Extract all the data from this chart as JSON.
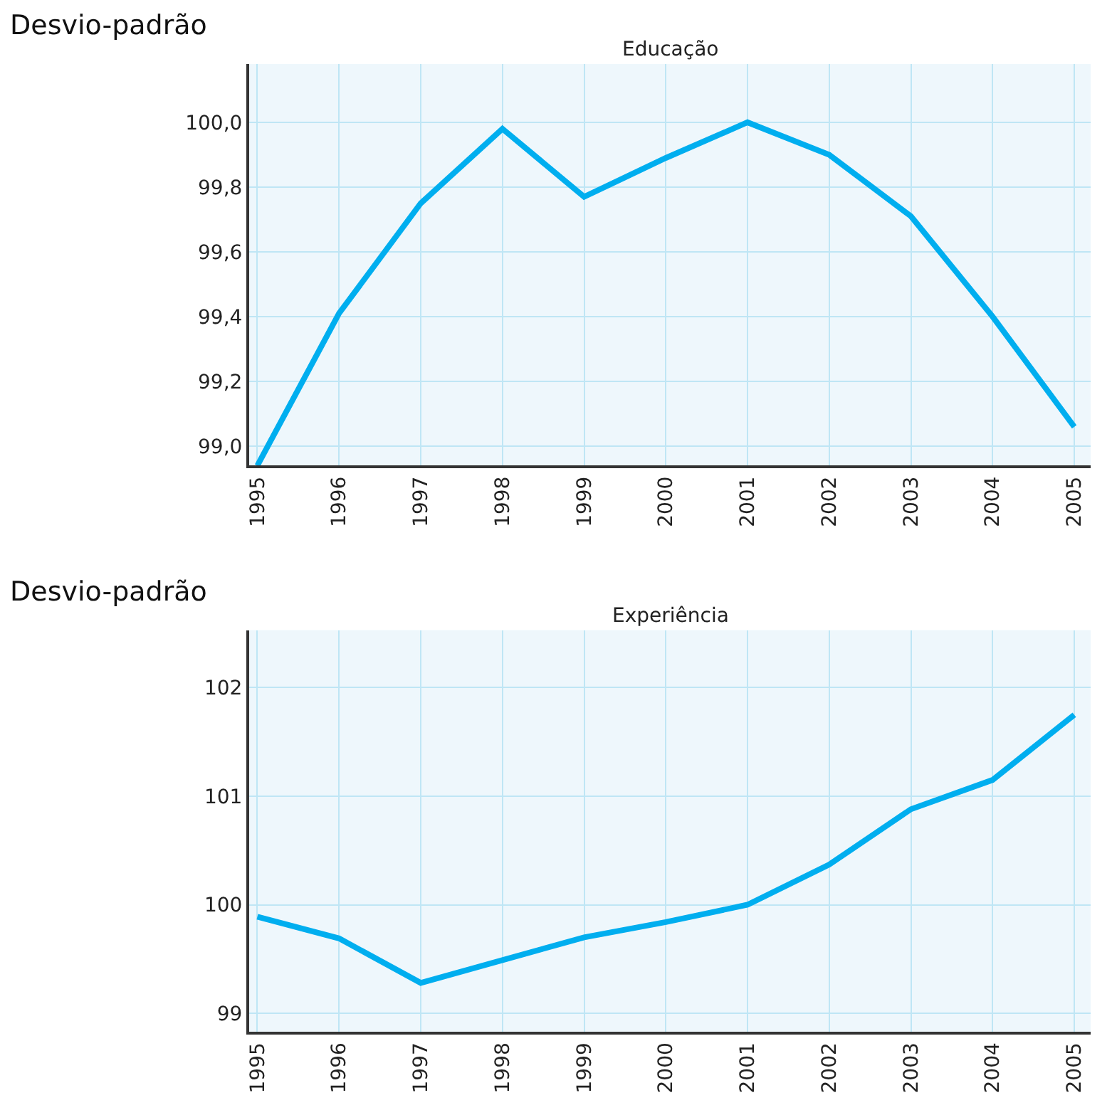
{
  "chart_data": [
    {
      "type": "line",
      "title": "Educação",
      "ylabel": "Desvio-padrão",
      "x": [
        1995,
        1996,
        1997,
        1998,
        1999,
        2000,
        2001,
        2002,
        2003,
        2004,
        2005
      ],
      "series": [
        {
          "color": "#00aeef",
          "values": [
            98.94,
            99.41,
            99.75,
            99.98,
            99.77,
            99.89,
            100.0,
            99.9,
            99.71,
            99.4,
            99.06
          ]
        }
      ],
      "xlim": [
        1994.9,
        2005.2
      ],
      "xticks": [
        1995,
        1996,
        1997,
        1998,
        1999,
        2000,
        2001,
        2002,
        2003,
        2004,
        2005
      ],
      "ylim": [
        98.94,
        100.18
      ],
      "yticks": [
        {
          "value": 99.0,
          "label": "99,0"
        },
        {
          "value": 99.2,
          "label": "99,2"
        },
        {
          "value": 99.4,
          "label": "99,4"
        },
        {
          "value": 99.6,
          "label": "99,6"
        },
        {
          "value": 99.8,
          "label": "99,8"
        },
        {
          "value": 100.0,
          "label": "100,0"
        }
      ],
      "grid": true,
      "marker": "none",
      "line_style": "solid"
    },
    {
      "type": "line",
      "title": "Experiência",
      "ylabel": "Desvio-padrão",
      "x": [
        1995,
        1996,
        1997,
        1998,
        1999,
        2000,
        2001,
        2002,
        2003,
        2004,
        2005
      ],
      "series": [
        {
          "color": "#00aeef",
          "values": [
            99.89,
            99.69,
            99.28,
            99.49,
            99.7,
            99.84,
            100.0,
            100.37,
            100.88,
            101.15,
            101.75
          ]
        }
      ],
      "xlim": [
        1994.9,
        2005.2
      ],
      "xticks": [
        1995,
        1996,
        1997,
        1998,
        1999,
        2000,
        2001,
        2002,
        2003,
        2004,
        2005
      ],
      "ylim": [
        98.83,
        102.53
      ],
      "yticks": [
        99,
        100,
        101,
        102
      ],
      "grid": true,
      "marker": "none",
      "line_style": "solid"
    }
  ]
}
